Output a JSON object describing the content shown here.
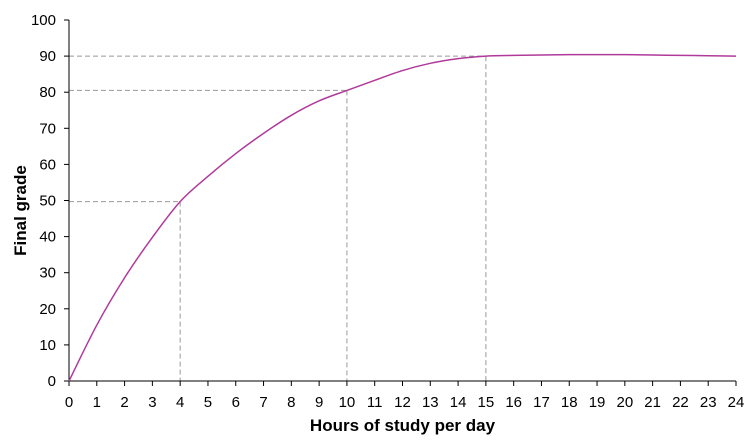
{
  "chart_data": {
    "type": "line",
    "xlabel": "Hours of study per day",
    "ylabel": "Final grade",
    "xlim": [
      0,
      24
    ],
    "ylim": [
      0,
      100
    ],
    "x_ticks": [
      0,
      1,
      2,
      3,
      4,
      5,
      6,
      7,
      8,
      9,
      10,
      11,
      12,
      13,
      14,
      15,
      16,
      17,
      18,
      19,
      20,
      21,
      22,
      23,
      24
    ],
    "y_ticks": [
      0,
      10,
      20,
      30,
      40,
      50,
      60,
      70,
      80,
      90,
      100
    ],
    "grid": false,
    "line_color": "#b03a9a",
    "guide_color": "#999999",
    "series": [
      {
        "x": [
          0,
          1,
          2,
          3,
          4,
          5,
          6,
          7,
          8,
          9,
          10,
          11,
          12,
          13,
          14,
          15,
          16,
          17,
          18,
          19,
          20,
          21,
          22,
          23,
          24
        ],
        "y": [
          0,
          15.5,
          28.6,
          39.8,
          49.7,
          56.7,
          63.0,
          68.6,
          73.6,
          77.6,
          80.5,
          83.3,
          86.0,
          88.0,
          89.3,
          90.0,
          90.2,
          90.3,
          90.4,
          90.4,
          90.4,
          90.3,
          90.2,
          90.1,
          90.0
        ]
      }
    ],
    "reference_points": [
      {
        "x": 4,
        "y": 49.7
      },
      {
        "x": 10,
        "y": 80.5
      },
      {
        "x": 15,
        "y": 90.0
      }
    ]
  }
}
